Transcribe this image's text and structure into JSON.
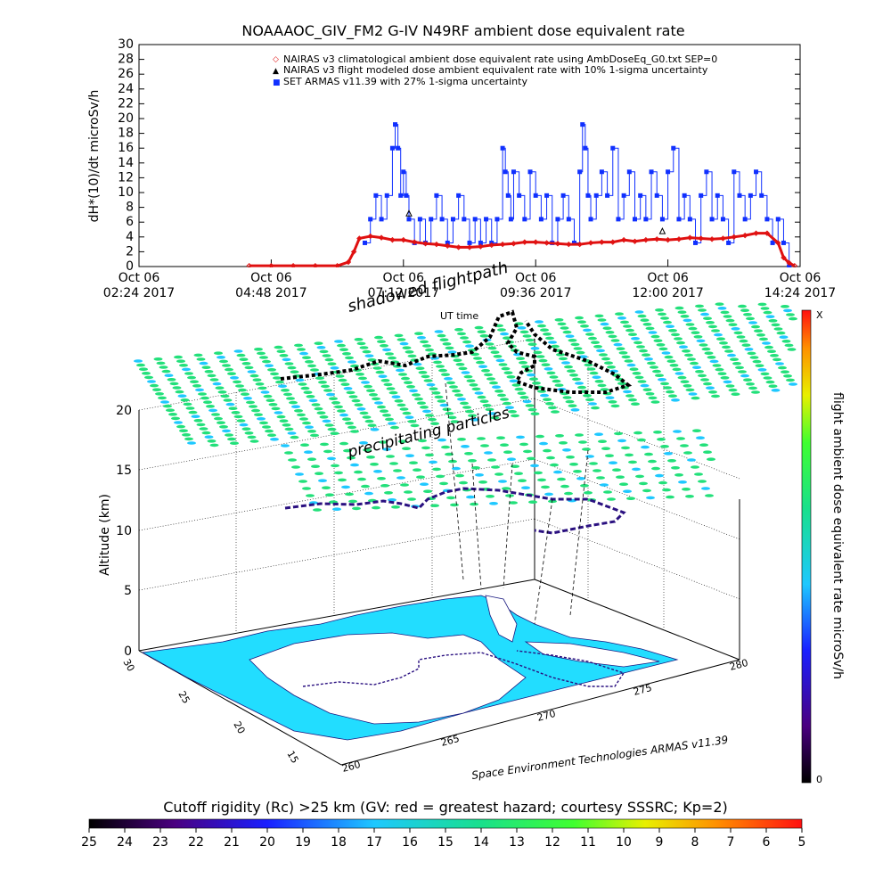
{
  "top_title": "NOAAAOC_GIV_FM2 G-IV    N49RF   ambient dose equivalent rate",
  "colors": {
    "nairas_clim": "#e01010",
    "nairas_flight": "#000000",
    "armas": "#1030ff",
    "lat_grid": "#22e07a",
    "coast": "#22ddff"
  },
  "chart_data": [
    {
      "type": "line",
      "title": "NOAAAOC_GIV_FM2 G-IV    N49RF   ambient dose equivalent rate",
      "ylabel": "dH*(10)/dt microSv/h",
      "ylim": [
        0,
        30
      ],
      "yticks": [
        "0",
        "2",
        "4",
        "6",
        "8",
        "10",
        "12",
        "14",
        "16",
        "18",
        "20",
        "22",
        "24",
        "26",
        "28",
        "30"
      ],
      "xlim_hours": [
        2.4,
        14.4
      ],
      "xticks": [
        {
          "h": 2.4,
          "line1": "Oct 06",
          "line2": "02:24 2017"
        },
        {
          "h": 4.8,
          "line1": "Oct 06",
          "line2": "04:48 2017"
        },
        {
          "h": 7.2,
          "line1": "Oct 06",
          "line2": "07:12 2017"
        },
        {
          "h": 9.6,
          "line1": "Oct 06",
          "line2": "09:36 2017"
        },
        {
          "h": 12.0,
          "line1": "Oct 06",
          "line2": "12:00 2017"
        },
        {
          "h": 14.4,
          "line1": "Oct 06",
          "line2": "14:24 2017"
        }
      ],
      "legend": [
        {
          "marker": "◇",
          "color": "#e01010",
          "label": "NAIRAS v3 climatological ambient dose equivalent rate using AmbDoseEq_G0.txt SEP=0"
        },
        {
          "marker": "▲",
          "color": "#000000",
          "label": "NAIRAS v3 flight modeled dose ambient equivalent rate with 10% 1-sigma uncertainty"
        },
        {
          "marker": "■",
          "color": "#1030ff",
          "label": "SET ARMAS v11.39 with 27% 1-sigma uncertainty"
        }
      ],
      "series": [
        {
          "name": "NAIRAS v3 climatological ambient dose equivalent rate using AmbDoseEq_G0.txt SEP=0",
          "x": [
            4.4,
            4.8,
            5.2,
            5.6,
            6.0,
            6.2,
            6.3,
            6.4,
            6.6,
            6.8,
            7.0,
            7.2,
            7.4,
            7.6,
            7.8,
            8.0,
            8.2,
            8.4,
            8.6,
            8.8,
            9.0,
            9.2,
            9.4,
            9.6,
            9.8,
            10.0,
            10.2,
            10.4,
            10.6,
            10.8,
            11.0,
            11.2,
            11.4,
            11.6,
            11.8,
            12.0,
            12.2,
            12.4,
            12.6,
            12.8,
            13.0,
            13.2,
            13.4,
            13.6,
            13.8,
            14.0,
            14.1,
            14.2,
            14.3
          ],
          "y": [
            0.1,
            0.1,
            0.1,
            0.1,
            0.1,
            0.6,
            2.0,
            3.8,
            4.1,
            3.9,
            3.6,
            3.6,
            3.3,
            3.1,
            3.0,
            2.8,
            2.6,
            2.6,
            2.7,
            2.9,
            3.0,
            3.1,
            3.3,
            3.3,
            3.2,
            3.1,
            3.0,
            3.0,
            3.2,
            3.3,
            3.3,
            3.6,
            3.4,
            3.6,
            3.7,
            3.6,
            3.7,
            3.9,
            3.8,
            3.7,
            3.8,
            4.0,
            4.2,
            4.5,
            4.5,
            3.2,
            1.2,
            0.5,
            0.1
          ]
        },
        {
          "name": "NAIRAS v3 flight modeled dose ambient equivalent rate with 10% 1-sigma uncertainty",
          "x": [
            7.3,
            11.9
          ],
          "y": [
            7.2,
            4.8
          ]
        },
        {
          "name": "SET ARMAS v11.39 with 27% 1-sigma uncertainty",
          "x": [
            6.5,
            6.6,
            6.7,
            6.8,
            6.9,
            7.0,
            7.05,
            7.1,
            7.15,
            7.2,
            7.25,
            7.3,
            7.4,
            7.5,
            7.6,
            7.7,
            7.8,
            7.9,
            8.0,
            8.1,
            8.2,
            8.3,
            8.4,
            8.5,
            8.6,
            8.7,
            8.8,
            8.9,
            9.0,
            9.05,
            9.1,
            9.15,
            9.2,
            9.3,
            9.4,
            9.5,
            9.6,
            9.7,
            9.8,
            9.9,
            10.0,
            10.1,
            10.2,
            10.3,
            10.4,
            10.45,
            10.5,
            10.55,
            10.6,
            10.7,
            10.8,
            10.9,
            11.0,
            11.1,
            11.2,
            11.3,
            11.4,
            11.5,
            11.6,
            11.7,
            11.8,
            11.9,
            12.0,
            12.1,
            12.2,
            12.3,
            12.4,
            12.5,
            12.6,
            12.7,
            12.8,
            12.9,
            13.0,
            13.1,
            13.2,
            13.3,
            13.4,
            13.5,
            13.6,
            13.7,
            13.8,
            13.9,
            14.0,
            14.1,
            14.2
          ],
          "y": [
            3.2,
            6.4,
            9.6,
            6.4,
            9.6,
            16.0,
            19.2,
            16.0,
            9.6,
            12.8,
            9.6,
            6.4,
            3.2,
            6.4,
            3.2,
            6.4,
            9.6,
            6.4,
            3.2,
            6.4,
            9.6,
            6.4,
            3.2,
            6.4,
            3.2,
            6.4,
            3.2,
            6.4,
            16.0,
            12.8,
            9.6,
            6.4,
            12.8,
            9.6,
            6.4,
            12.8,
            9.6,
            6.4,
            9.6,
            3.2,
            6.4,
            9.6,
            6.4,
            3.2,
            12.8,
            19.2,
            16.0,
            9.6,
            6.4,
            9.6,
            12.8,
            9.6,
            16.0,
            6.4,
            9.6,
            12.8,
            6.4,
            9.6,
            6.4,
            12.8,
            9.6,
            6.4,
            12.8,
            16.0,
            6.4,
            9.6,
            6.4,
            3.2,
            9.6,
            12.8,
            6.4,
            9.6,
            6.4,
            3.2,
            12.8,
            9.6,
            6.4,
            9.6,
            12.8,
            9.6,
            6.4,
            3.2,
            6.4,
            3.2,
            0.0
          ]
        }
      ]
    },
    {
      "type": "scatter",
      "title": "",
      "zlabel": "Altitude (km)",
      "zlim": [
        0,
        20
      ],
      "zticks": [
        "0",
        "5",
        "10",
        "15",
        "20"
      ],
      "lat_ticks": [
        "30",
        "25",
        "20",
        "15"
      ],
      "lon_ticks": [
        "260",
        "265",
        "270",
        "275",
        "280"
      ],
      "annotations": [
        "shadowed flightpath",
        "UT time",
        "precipitating particles"
      ],
      "credit": "Space Environment Technologies ARMAS v11.39",
      "side_colorbar": {
        "label": "flight ambient dose equivalent rate microSv/h",
        "top": "X",
        "bottom": "0"
      }
    },
    {
      "type": "heatmap",
      "title": "Cutoff rigidity (Rc) >25 km (GV: red = greatest hazard; courtesy SSSRC; Kp=2)",
      "ticks": [
        "25",
        "24",
        "23",
        "22",
        "21",
        "20",
        "19",
        "18",
        "17",
        "16",
        "15",
        "14",
        "13",
        "12",
        "11",
        "10",
        "9",
        "8",
        "7",
        "6",
        "5"
      ]
    }
  ]
}
